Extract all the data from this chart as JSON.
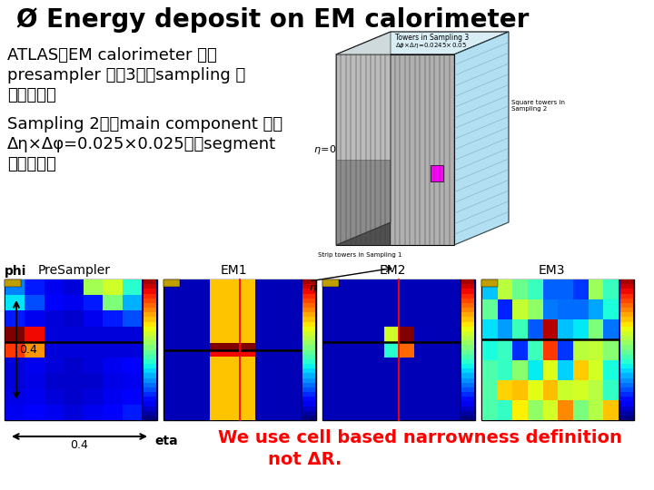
{
  "title": "Ø Energy deposit on EM calorimeter",
  "title_size": 20,
  "bg_color": "#ffffff",
  "text1": "ATLASのEM calorimeter は、",
  "text2": "presampler と、3つのsampling 層",
  "text3": "からなる。",
  "text4": "Sampling 2が、main component で、",
  "text5": "Δη×Δφ=0.025×0.025と、segment",
  "text6": "が細かい。",
  "red_text1": "We use cell based narrowness definition",
  "red_text2": "not ΔR.",
  "panel_labels": [
    "PreSampler",
    "EM1",
    "EM2",
    "EM3"
  ],
  "body_fontsize": 13,
  "panel_label_fontsize": 10,
  "phi_label": "phi",
  "eta_label": "eta",
  "arrow_val": "0.4"
}
